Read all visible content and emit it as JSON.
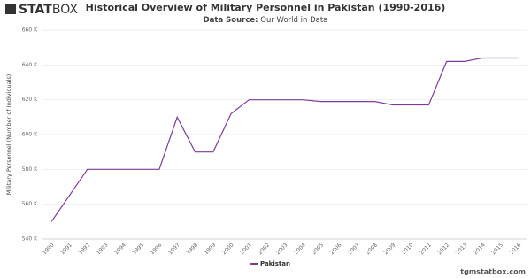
{
  "logo": {
    "bold": "STAT",
    "light": "BOX"
  },
  "footer": "tgmstatbox.com",
  "chart_data": {
    "type": "line",
    "title": "Historical Overview of Military Personnel in Pakistan (1990-2016)",
    "source_label": "Data Source:",
    "source": "Our World in Data",
    "y_label": "Military Personnel (Number of Individuals)",
    "categories": [
      "1990",
      "1991",
      "1992",
      "1993",
      "1994",
      "1995",
      "1996",
      "1997",
      "1998",
      "1999",
      "2000",
      "2001",
      "2002",
      "2003",
      "2004",
      "2005",
      "2006",
      "2007",
      "2008",
      "2009",
      "2010",
      "2011",
      "2012",
      "2013",
      "2014",
      "2015",
      "2016"
    ],
    "series": [
      {
        "name": "Pakistan",
        "color": "#7d3c98",
        "values": [
          550000,
          565000,
          580000,
          580000,
          580000,
          580000,
          580000,
          610000,
          590000,
          590000,
          612000,
          620000,
          620000,
          620000,
          620000,
          619000,
          619000,
          619000,
          619000,
          617000,
          617000,
          617000,
          642000,
          642000,
          644000,
          644000,
          644000
        ]
      }
    ],
    "ylim": [
      540000,
      660000
    ],
    "yticks": [
      {
        "value": 540000,
        "label": "540 K"
      },
      {
        "value": 560000,
        "label": "560 K"
      },
      {
        "value": 580000,
        "label": "580 K"
      },
      {
        "value": 600000,
        "label": "600 K"
      },
      {
        "value": 620000,
        "label": "620 K"
      },
      {
        "value": 640000,
        "label": "640 K"
      },
      {
        "value": 660000,
        "label": "660 K"
      }
    ],
    "grid": true
  }
}
